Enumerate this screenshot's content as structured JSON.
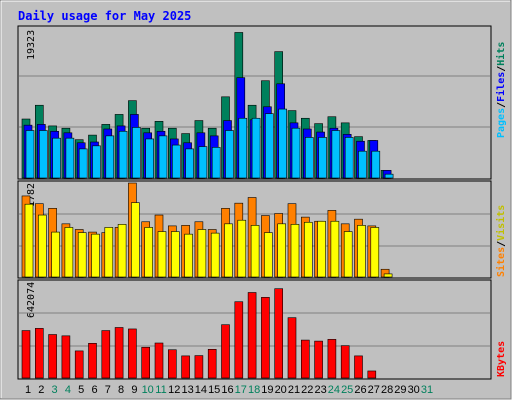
{
  "chart_data": [
    {
      "type": "bar",
      "title": "Daily usage for May 2025",
      "categories": [
        "1",
        "2",
        "3",
        "4",
        "5",
        "6",
        "7",
        "8",
        "9",
        "10",
        "11",
        "12",
        "13",
        "14",
        "15",
        "16",
        "17",
        "18",
        "19",
        "20",
        "21",
        "22",
        "23",
        "24",
        "25",
        "26",
        "27",
        "28",
        "29",
        "30",
        "31"
      ],
      "weekend_days": [
        "3",
        "4",
        "10",
        "11",
        "17",
        "18",
        "24",
        "25",
        "31"
      ],
      "ylabel_max": "19323",
      "ylim": [
        0,
        19323
      ],
      "legend": [
        "Pages",
        "Files",
        "Hits"
      ],
      "series": [
        {
          "name": "Hits",
          "color": "#00805c",
          "values": [
            7700,
            9500,
            6800,
            6500,
            5000,
            5600,
            7000,
            8300,
            10100,
            6500,
            7400,
            6500,
            5800,
            7500,
            6500,
            10600,
            19000,
            9500,
            12700,
            16500,
            8800,
            7800,
            7100,
            8000,
            7200,
            5400,
            4900,
            1000,
            0,
            0,
            0
          ]
        },
        {
          "name": "Files",
          "color": "#0000ff",
          "values": [
            6900,
            7000,
            6100,
            5900,
            4600,
            4700,
            6400,
            6800,
            8300,
            5900,
            6100,
            5100,
            4600,
            5900,
            5500,
            7500,
            13100,
            7600,
            9300,
            12300,
            7200,
            6400,
            6000,
            6500,
            5700,
            4800,
            4900,
            1000,
            0,
            0,
            0
          ]
        },
        {
          "name": "Pages",
          "color": "#00c0ff",
          "values": [
            6200,
            6200,
            5200,
            5200,
            3800,
            4200,
            5500,
            6100,
            6600,
            5100,
            5500,
            4300,
            3800,
            4100,
            4000,
            6200,
            7800,
            7800,
            8400,
            9000,
            6500,
            5300,
            5300,
            6200,
            5300,
            3500,
            3500,
            500,
            0,
            0,
            0
          ]
        }
      ]
    },
    {
      "type": "bar",
      "categories": [
        "1",
        "2",
        "3",
        "4",
        "5",
        "6",
        "7",
        "8",
        "9",
        "10",
        "11",
        "12",
        "13",
        "14",
        "15",
        "16",
        "17",
        "18",
        "19",
        "20",
        "21",
        "22",
        "23",
        "24",
        "25",
        "26",
        "27",
        "28",
        "29",
        "30",
        "31"
      ],
      "ylabel_max": "1782",
      "ylim": [
        0,
        1782
      ],
      "legend": [
        "Sites",
        "Visits"
      ],
      "series": [
        {
          "name": "Visits",
          "color": "#ff8000",
          "values": [
            1570,
            1420,
            1330,
            1030,
            920,
            870,
            860,
            960,
            1820,
            1070,
            1200,
            990,
            1000,
            1070,
            920,
            1330,
            1430,
            1540,
            1190,
            1230,
            1420,
            1160,
            1080,
            1290,
            1030,
            1120,
            990,
            150,
            0,
            0,
            0
          ]
        },
        {
          "name": "Sites",
          "color": "#ffff00",
          "values": [
            1410,
            1200,
            870,
            960,
            860,
            830,
            960,
            1020,
            1440,
            960,
            880,
            880,
            830,
            920,
            850,
            1030,
            1100,
            1000,
            860,
            1030,
            1020,
            1060,
            1080,
            1080,
            880,
            1000,
            960,
            60,
            0,
            0,
            0
          ]
        }
      ]
    },
    {
      "type": "bar",
      "categories": [
        "1",
        "2",
        "3",
        "4",
        "5",
        "6",
        "7",
        "8",
        "9",
        "10",
        "11",
        "12",
        "13",
        "14",
        "15",
        "16",
        "17",
        "18",
        "19",
        "20",
        "21",
        "22",
        "23",
        "24",
        "25",
        "26",
        "27",
        "28",
        "29",
        "30",
        "31"
      ],
      "ylabel_max": "642074",
      "ylim": [
        0,
        642074
      ],
      "legend": [
        "KBytes"
      ],
      "series": [
        {
          "name": "KBytes",
          "color": "#ff0000",
          "values": [
            324000,
            339000,
            297000,
            288000,
            185000,
            237000,
            324000,
            345000,
            335000,
            210000,
            239000,
            193000,
            151000,
            153000,
            196000,
            364000,
            521000,
            584000,
            551000,
            610000,
            412000,
            259000,
            252000,
            264000,
            221000,
            151000,
            48000,
            0,
            0,
            0,
            0
          ]
        }
      ]
    }
  ],
  "colors": {
    "plot_bg": "#c0c0c0",
    "frame_bg": "#c0c0c0",
    "title": "#0000ff",
    "weekday": "#000000",
    "weekend": "#00805c"
  }
}
